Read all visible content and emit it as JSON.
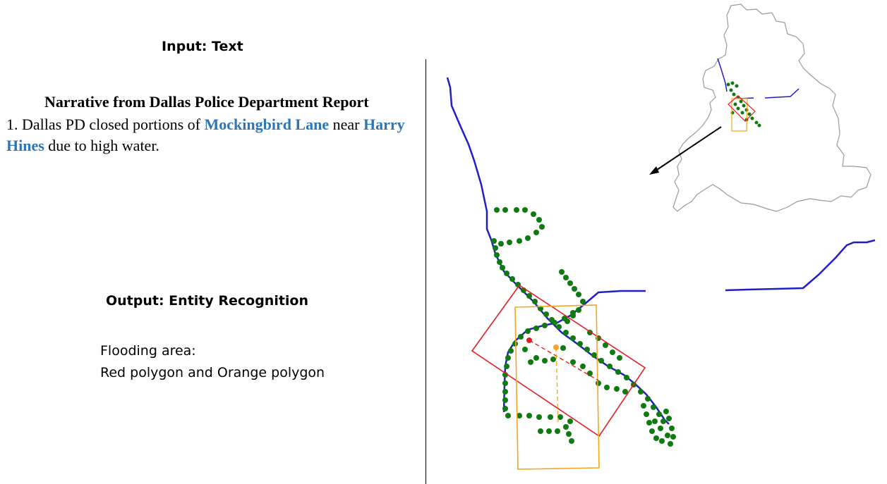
{
  "input": {
    "heading": "Input: Text"
  },
  "narrative": {
    "title": "Narrative from Dallas Police Department Report",
    "prefix": "1. Dallas PD closed portions of ",
    "entity_1": "Mockingbird Lane",
    "middle": " near ",
    "entity_2": "Harry Hines",
    "suffix": " due to high water."
  },
  "output": {
    "heading": "Output: Entity Recognition",
    "line_1": "Flooding area:",
    "line_2": "Red polygon and Orange polygon"
  },
  "colors": {
    "entity_text": "#2e75b6",
    "road_line": "#1f1fc8",
    "point_marker": "#0f7a0f",
    "red_polygon": "#e02020",
    "orange_polygon": "#f5a623",
    "city_outline": "#9a9a9a"
  }
}
